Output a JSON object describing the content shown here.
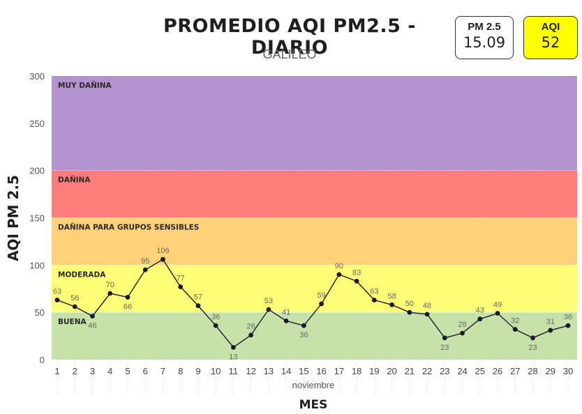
{
  "header": {
    "title": "PROMEDIO AQI PM2.5 - DIARIO",
    "subtitle": "GALILEO"
  },
  "cards": {
    "pm": {
      "label": "PM 2.5",
      "value": "15.09"
    },
    "aqi": {
      "label": "AQI",
      "value": "52",
      "color": "#ffff00"
    }
  },
  "chart_data": {
    "type": "line",
    "xlabel": "MES",
    "xsublabel": "noviembre",
    "ylabel": "AQI PM 2.5",
    "ylim": [
      0,
      300
    ],
    "yticks": [
      0,
      50,
      100,
      150,
      200,
      250,
      300
    ],
    "x": [
      1,
      2,
      3,
      4,
      5,
      6,
      7,
      8,
      9,
      10,
      11,
      12,
      13,
      14,
      15,
      16,
      17,
      18,
      19,
      20,
      21,
      22,
      23,
      24,
      25,
      26,
      27,
      28,
      29,
      30
    ],
    "series": [
      {
        "values": [
          63,
          56,
          46,
          70,
          66,
          95,
          106,
          77,
          57,
          36,
          13,
          26,
          53,
          41,
          36,
          59,
          90,
          83,
          63,
          58,
          50,
          48,
          23,
          28,
          43,
          49,
          32,
          23,
          31,
          36
        ],
        "color": "#1a1a2e"
      }
    ],
    "bands": [
      {
        "label": "BUENA",
        "from": 0,
        "to": 50,
        "color": "#c6e2a9"
      },
      {
        "label": "MODERADA",
        "from": 50,
        "to": 100,
        "color": "#ffff77"
      },
      {
        "label": "DAÑINA PARA GRUPOS SENSIBLES",
        "from": 100,
        "to": 150,
        "color": "#ffd27a"
      },
      {
        "label": "DAÑINA",
        "from": 150,
        "to": 200,
        "color": "#ff7c7c"
      },
      {
        "label": "MUY DAÑINA",
        "from": 200,
        "to": 300,
        "color": "#b393cd"
      }
    ],
    "grid": false,
    "legend": "none"
  }
}
